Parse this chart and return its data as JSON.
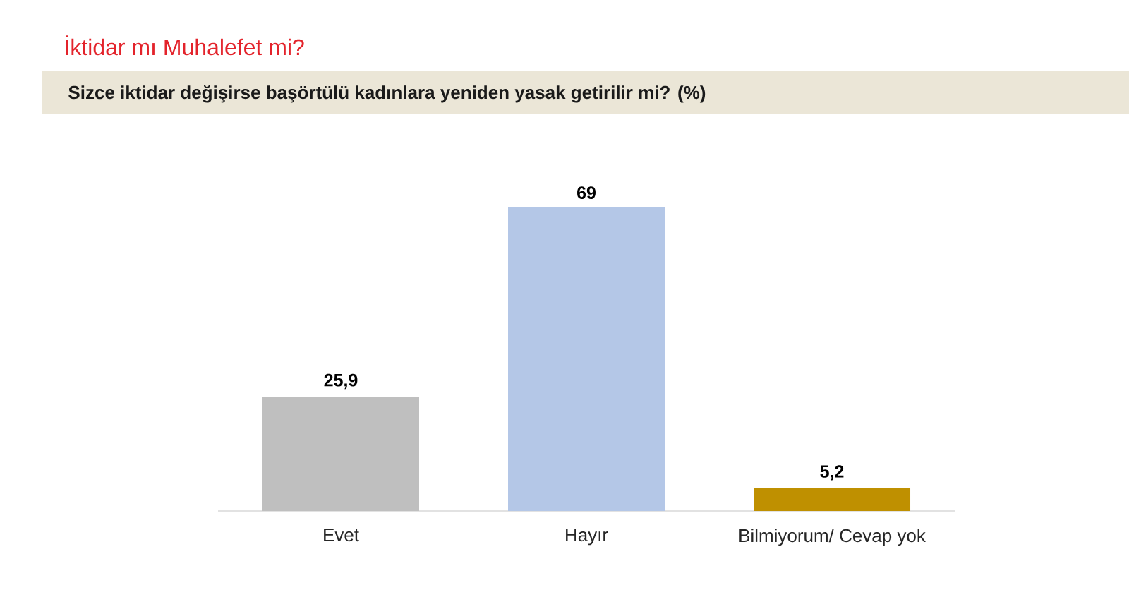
{
  "chart_data": {
    "type": "bar",
    "title": "İktidar mı Muhalefet mi?",
    "subtitle": "Sizce iktidar değişirse başörtülü kadınlara yeniden yasak getirilir mi? (%)",
    "categories": [
      "Evet",
      "Hayır",
      "Bilmiyorum/ Cevap yok"
    ],
    "values": [
      25.9,
      69,
      5.2
    ],
    "colors": [
      "#bfbfbf",
      "#b4c7e7",
      "#bf9000"
    ],
    "value_labels": [
      "25,9",
      "69",
      "5,2"
    ]
  }
}
